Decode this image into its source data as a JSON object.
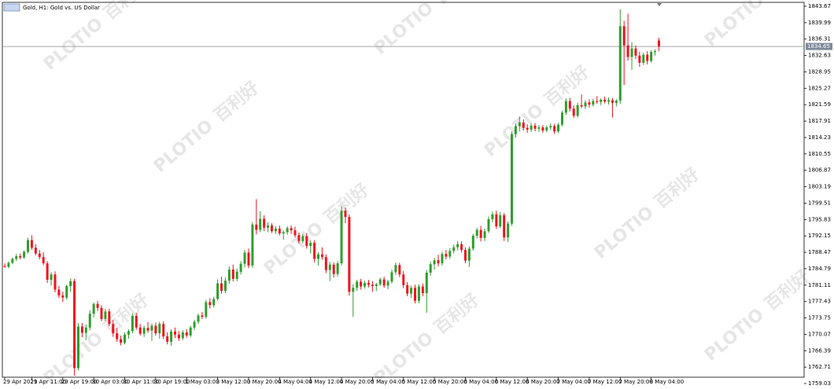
{
  "chart_data": {
    "type": "candlestick",
    "title": "Gold, H1: Gold vs. US Dollar",
    "watermark_brand": "PLOTIO",
    "watermark_cn": "百利好",
    "up_color": "#2e9e2e",
    "down_color": "#f0131e",
    "ylim": [
      1757.8,
      1844.55
    ],
    "yticks": [
      1843.67,
      1839.99,
      1836.31,
      1832.63,
      1828.95,
      1825.27,
      1821.59,
      1817.91,
      1814.23,
      1810.55,
      1806.87,
      1803.19,
      1799.51,
      1795.83,
      1792.15,
      1788.47,
      1784.79,
      1781.11,
      1777.43,
      1773.75,
      1770.07,
      1766.39,
      1762.71,
      1759.03
    ],
    "price_line": 1834.65,
    "categories": [
      "29 Apr 2021",
      null,
      null,
      null,
      null,
      null,
      null,
      "29 Apr 11:00",
      null,
      null,
      null,
      null,
      null,
      null,
      null,
      "29 Apr 19:00",
      null,
      null,
      null,
      null,
      null,
      null,
      null,
      "30 Apr 03:00",
      null,
      null,
      null,
      null,
      null,
      null,
      null,
      "30 Apr 11:00",
      null,
      null,
      null,
      null,
      null,
      null,
      null,
      "30 Apr 19:00",
      null,
      null,
      null,
      null,
      null,
      null,
      null,
      "1 May 03:00",
      null,
      null,
      null,
      null,
      null,
      null,
      null,
      "3 May 12:00",
      null,
      null,
      null,
      null,
      null,
      null,
      null,
      "3 May 20:00",
      null,
      null,
      null,
      null,
      null,
      null,
      null,
      "4 May 04:00",
      null,
      null,
      null,
      null,
      null,
      null,
      null,
      "4 May 12:00",
      null,
      null,
      null,
      null,
      null,
      null,
      null,
      "4 May 20:00",
      null,
      null,
      null,
      null,
      null,
      null,
      null,
      "5 May 04:00",
      null,
      null,
      null,
      null,
      null,
      null,
      null,
      "5 May 12:00",
      null,
      null,
      null,
      null,
      null,
      null,
      null,
      "5 May 20:00",
      null,
      null,
      null,
      null,
      null,
      null,
      null,
      "6 May 04:00",
      null,
      null,
      null,
      null,
      null,
      null,
      null,
      "6 May 12:00",
      null,
      null,
      null,
      null,
      null,
      null,
      null,
      "6 May 20:00",
      null,
      null,
      null,
      null,
      null,
      null,
      null,
      "7 May 04:00",
      null,
      null,
      null,
      null,
      null,
      null,
      null,
      "7 May 12:00",
      null,
      null,
      null,
      null,
      null,
      null,
      null,
      "7 May 20:00",
      null,
      null,
      null,
      null,
      null,
      null,
      null,
      "8 May 04:00",
      null,
      null
    ],
    "candles": [
      [
        1785.4,
        1786.0,
        1785.0,
        1785.2
      ],
      [
        1785.2,
        1786.4,
        1784.9,
        1786.1
      ],
      [
        1786.1,
        1787.3,
        1785.8,
        1787.0
      ],
      [
        1787.0,
        1788.1,
        1786.5,
        1787.6
      ],
      [
        1787.6,
        1788.2,
        1786.9,
        1787.3
      ],
      [
        1787.3,
        1788.9,
        1787.0,
        1788.6
      ],
      [
        1788.6,
        1791.7,
        1788.2,
        1791.2
      ],
      [
        1791.2,
        1792.3,
        1789.0,
        1789.5
      ],
      [
        1789.5,
        1790.3,
        1787.8,
        1788.2
      ],
      [
        1788.2,
        1789.0,
        1786.9,
        1787.4
      ],
      [
        1787.4,
        1788.5,
        1785.6,
        1786.0
      ],
      [
        1786.0,
        1786.5,
        1781.6,
        1782.3
      ],
      [
        1782.3,
        1784.0,
        1781.0,
        1783.5
      ],
      [
        1783.5,
        1784.2,
        1779.5,
        1780.1
      ],
      [
        1780.1,
        1780.9,
        1778.2,
        1778.8
      ],
      [
        1778.8,
        1779.6,
        1777.3,
        1778.3
      ],
      [
        1778.3,
        1781.2,
        1777.8,
        1780.9
      ],
      [
        1780.9,
        1782.6,
        1779.6,
        1782.0
      ],
      [
        1782.0,
        1782.5,
        1760.8,
        1762.5
      ],
      [
        1762.5,
        1772.6,
        1762.0,
        1771.8
      ],
      [
        1771.8,
        1772.6,
        1769.4,
        1770.4
      ],
      [
        1770.4,
        1772.3,
        1768.8,
        1771.6
      ],
      [
        1771.6,
        1775.5,
        1771.0,
        1774.7
      ],
      [
        1774.7,
        1777.2,
        1773.8,
        1776.9
      ],
      [
        1776.9,
        1777.6,
        1775.3,
        1776.0
      ],
      [
        1776.0,
        1776.6,
        1773.0,
        1773.5
      ],
      [
        1773.5,
        1775.8,
        1773.0,
        1775.2
      ],
      [
        1775.2,
        1775.8,
        1771.9,
        1772.4
      ],
      [
        1772.4,
        1773.3,
        1769.5,
        1770.3
      ],
      [
        1770.3,
        1771.5,
        1768.4,
        1769.0
      ],
      [
        1769.0,
        1769.8,
        1767.6,
        1768.2
      ],
      [
        1768.2,
        1770.5,
        1767.8,
        1770.0
      ],
      [
        1770.0,
        1771.2,
        1769.1,
        1770.8
      ],
      [
        1770.8,
        1774.8,
        1770.3,
        1774.2
      ],
      [
        1774.2,
        1774.9,
        1771.1,
        1771.6
      ],
      [
        1771.6,
        1772.4,
        1769.8,
        1770.2
      ],
      [
        1770.2,
        1772.0,
        1769.5,
        1771.5
      ],
      [
        1771.5,
        1772.8,
        1770.4,
        1770.9
      ],
      [
        1770.9,
        1772.5,
        1768.6,
        1772.0
      ],
      [
        1772.0,
        1772.7,
        1769.8,
        1770.3
      ],
      [
        1770.3,
        1772.9,
        1769.1,
        1772.4
      ],
      [
        1772.4,
        1773.0,
        1769.0,
        1769.6
      ],
      [
        1769.6,
        1770.5,
        1767.8,
        1768.4
      ],
      [
        1768.4,
        1771.2,
        1767.5,
        1770.7
      ],
      [
        1770.7,
        1771.6,
        1769.2,
        1770.0
      ],
      [
        1770.0,
        1770.8,
        1768.6,
        1769.2
      ],
      [
        1769.2,
        1771.0,
        1768.8,
        1770.5
      ],
      [
        1770.5,
        1771.2,
        1769.3,
        1769.8
      ],
      [
        1769.8,
        1772.0,
        1769.4,
        1771.6
      ],
      [
        1771.6,
        1773.3,
        1771.0,
        1772.9
      ],
      [
        1772.9,
        1774.7,
        1772.4,
        1774.3
      ],
      [
        1774.3,
        1775.1,
        1773.5,
        1774.0
      ],
      [
        1774.0,
        1777.8,
        1773.6,
        1777.3
      ],
      [
        1777.3,
        1778.2,
        1775.9,
        1776.6
      ],
      [
        1776.6,
        1778.5,
        1776.1,
        1778.0
      ],
      [
        1778.0,
        1782.4,
        1777.6,
        1781.5
      ],
      [
        1781.5,
        1783.0,
        1779.2,
        1779.8
      ],
      [
        1779.8,
        1782.8,
        1779.3,
        1782.1
      ],
      [
        1782.1,
        1785.3,
        1781.4,
        1784.6
      ],
      [
        1784.6,
        1785.7,
        1781.9,
        1782.5
      ],
      [
        1782.5,
        1784.8,
        1782.0,
        1784.1
      ],
      [
        1784.1,
        1786.5,
        1783.5,
        1785.9
      ],
      [
        1785.9,
        1789.0,
        1785.1,
        1788.4
      ],
      [
        1788.4,
        1789.3,
        1784.9,
        1785.5
      ],
      [
        1785.5,
        1795.3,
        1785.0,
        1794.7
      ],
      [
        1794.7,
        1800.4,
        1792.5,
        1793.5
      ],
      [
        1793.5,
        1797.7,
        1793.0,
        1796.0
      ],
      [
        1796.0,
        1796.8,
        1793.2,
        1794.0
      ],
      [
        1794.0,
        1795.2,
        1793.0,
        1794.5
      ],
      [
        1794.5,
        1795.0,
        1792.8,
        1793.2
      ],
      [
        1793.2,
        1794.3,
        1792.6,
        1793.8
      ],
      [
        1793.8,
        1794.5,
        1792.3,
        1792.7
      ],
      [
        1792.7,
        1793.4,
        1791.3,
        1793.0
      ],
      [
        1793.0,
        1794.3,
        1792.4,
        1793.9
      ],
      [
        1793.9,
        1794.5,
        1792.6,
        1793.4
      ],
      [
        1793.4,
        1794.2,
        1791.8,
        1792.3
      ],
      [
        1792.3,
        1792.9,
        1790.4,
        1791.0
      ],
      [
        1791.0,
        1792.6,
        1790.5,
        1792.1
      ],
      [
        1792.1,
        1792.8,
        1789.3,
        1789.9
      ],
      [
        1789.9,
        1791.1,
        1788.2,
        1790.6
      ],
      [
        1790.6,
        1791.2,
        1786.2,
        1787.0
      ],
      [
        1787.0,
        1788.5,
        1785.5,
        1788.0
      ],
      [
        1788.0,
        1789.6,
        1786.8,
        1787.4
      ],
      [
        1787.4,
        1788.0,
        1783.8,
        1784.5
      ],
      [
        1784.5,
        1786.3,
        1782.0,
        1785.7
      ],
      [
        1785.7,
        1786.2,
        1782.8,
        1783.6
      ],
      [
        1783.6,
        1786.5,
        1783.0,
        1786.0
      ],
      [
        1786.0,
        1798.8,
        1785.5,
        1797.8
      ],
      [
        1797.8,
        1798.5,
        1795.0,
        1796.4
      ],
      [
        1796.4,
        1797.0,
        1778.8,
        1779.6
      ],
      [
        1779.6,
        1781.3,
        1774.0,
        1780.5
      ],
      [
        1780.5,
        1782.3,
        1779.8,
        1781.9
      ],
      [
        1781.9,
        1782.5,
        1780.1,
        1780.8
      ],
      [
        1780.8,
        1782.1,
        1780.3,
        1781.6
      ],
      [
        1781.6,
        1782.3,
        1780.6,
        1781.2
      ],
      [
        1781.2,
        1782.0,
        1779.6,
        1780.9
      ],
      [
        1780.9,
        1781.6,
        1779.8,
        1781.3
      ],
      [
        1781.3,
        1782.8,
        1780.9,
        1782.4
      ],
      [
        1782.4,
        1783.0,
        1780.5,
        1781.0
      ],
      [
        1781.0,
        1782.3,
        1780.2,
        1781.9
      ],
      [
        1781.9,
        1784.6,
        1781.5,
        1784.0
      ],
      [
        1784.0,
        1786.2,
        1783.4,
        1785.6
      ],
      [
        1785.6,
        1786.1,
        1782.9,
        1783.5
      ],
      [
        1783.5,
        1784.3,
        1780.4,
        1781.1
      ],
      [
        1781.1,
        1781.8,
        1778.6,
        1779.2
      ],
      [
        1779.2,
        1781.0,
        1778.2,
        1780.5
      ],
      [
        1780.5,
        1781.2,
        1777.0,
        1777.6
      ],
      [
        1777.6,
        1781.3,
        1777.0,
        1780.8
      ],
      [
        1780.8,
        1781.5,
        1778.6,
        1779.3
      ],
      [
        1779.3,
        1784.5,
        1774.9,
        1783.9
      ],
      [
        1783.9,
        1786.4,
        1783.2,
        1785.8
      ],
      [
        1785.8,
        1787.2,
        1784.6,
        1786.7
      ],
      [
        1786.7,
        1787.9,
        1785.3,
        1786.0
      ],
      [
        1786.0,
        1788.6,
        1785.5,
        1788.1
      ],
      [
        1788.1,
        1789.0,
        1786.9,
        1787.5
      ],
      [
        1787.5,
        1789.4,
        1787.0,
        1788.8
      ],
      [
        1788.8,
        1790.2,
        1788.2,
        1789.6
      ],
      [
        1789.6,
        1791.0,
        1788.9,
        1790.3
      ],
      [
        1790.3,
        1790.9,
        1788.4,
        1789.0
      ],
      [
        1789.0,
        1789.6,
        1786.0,
        1786.6
      ],
      [
        1786.6,
        1789.8,
        1785.2,
        1789.3
      ],
      [
        1789.3,
        1792.6,
        1788.8,
        1792.2
      ],
      [
        1792.2,
        1794.0,
        1791.6,
        1793.5
      ],
      [
        1793.5,
        1794.4,
        1790.9,
        1791.7
      ],
      [
        1791.7,
        1793.8,
        1791.0,
        1793.2
      ],
      [
        1793.2,
        1796.5,
        1792.8,
        1795.9
      ],
      [
        1795.9,
        1797.6,
        1795.2,
        1797.0
      ],
      [
        1797.0,
        1797.8,
        1793.7,
        1794.3
      ],
      [
        1794.3,
        1797.5,
        1793.9,
        1796.8
      ],
      [
        1796.8,
        1797.3,
        1791.0,
        1791.8
      ],
      [
        1791.8,
        1795.4,
        1790.8,
        1794.9
      ],
      [
        1794.9,
        1815.6,
        1794.4,
        1815.0
      ],
      [
        1815.0,
        1817.4,
        1814.2,
        1816.8
      ],
      [
        1816.8,
        1818.9,
        1815.6,
        1817.6
      ],
      [
        1817.6,
        1818.3,
        1815.8,
        1816.4
      ],
      [
        1816.4,
        1817.2,
        1815.3,
        1816.0
      ],
      [
        1816.0,
        1817.4,
        1815.5,
        1816.9
      ],
      [
        1816.9,
        1817.5,
        1815.6,
        1816.2
      ],
      [
        1816.2,
        1817.0,
        1815.5,
        1816.5
      ],
      [
        1816.5,
        1817.0,
        1815.3,
        1815.8
      ],
      [
        1815.8,
        1816.9,
        1815.4,
        1816.5
      ],
      [
        1816.5,
        1817.4,
        1815.9,
        1816.8
      ],
      [
        1816.8,
        1817.3,
        1815.0,
        1815.6
      ],
      [
        1815.6,
        1817.5,
        1815.2,
        1817.1
      ],
      [
        1817.1,
        1820.2,
        1816.7,
        1819.8
      ],
      [
        1819.8,
        1823.0,
        1819.3,
        1822.4
      ],
      [
        1822.4,
        1823.1,
        1820.1,
        1820.7
      ],
      [
        1820.7,
        1821.4,
        1818.6,
        1819.1
      ],
      [
        1819.1,
        1822.0,
        1818.7,
        1821.5
      ],
      [
        1821.5,
        1823.9,
        1820.8,
        1821.2
      ],
      [
        1821.2,
        1822.6,
        1820.6,
        1822.1
      ],
      [
        1822.1,
        1822.8,
        1820.9,
        1821.6
      ],
      [
        1821.6,
        1822.9,
        1821.2,
        1822.4
      ],
      [
        1822.4,
        1823.5,
        1821.8,
        1822.2
      ],
      [
        1822.2,
        1823.0,
        1821.5,
        1822.7
      ],
      [
        1822.7,
        1823.4,
        1821.9,
        1822.3
      ],
      [
        1822.3,
        1823.2,
        1821.6,
        1822.6
      ],
      [
        1822.6,
        1823.1,
        1818.7,
        1822.0
      ],
      [
        1822.0,
        1822.8,
        1821.2,
        1822.5
      ],
      [
        1822.5,
        1843.0,
        1821.8,
        1839.2
      ],
      [
        1839.2,
        1840.4,
        1826.0,
        1834.9
      ],
      [
        1834.9,
        1842.0,
        1831.5,
        1832.3
      ],
      [
        1832.3,
        1835.6,
        1829.4,
        1834.2
      ],
      [
        1834.2,
        1834.9,
        1831.8,
        1832.6
      ],
      [
        1832.6,
        1833.5,
        1830.1,
        1831.0
      ],
      [
        1831.0,
        1833.3,
        1830.5,
        1832.8
      ],
      [
        1832.8,
        1833.6,
        1830.6,
        1831.4
      ],
      [
        1831.4,
        1833.8,
        1831.0,
        1833.4
      ],
      [
        1833.4,
        1834.0,
        1832.6,
        1833.6
      ],
      [
        1836.0,
        1836.6,
        1833.6,
        1834.65
      ]
    ]
  }
}
